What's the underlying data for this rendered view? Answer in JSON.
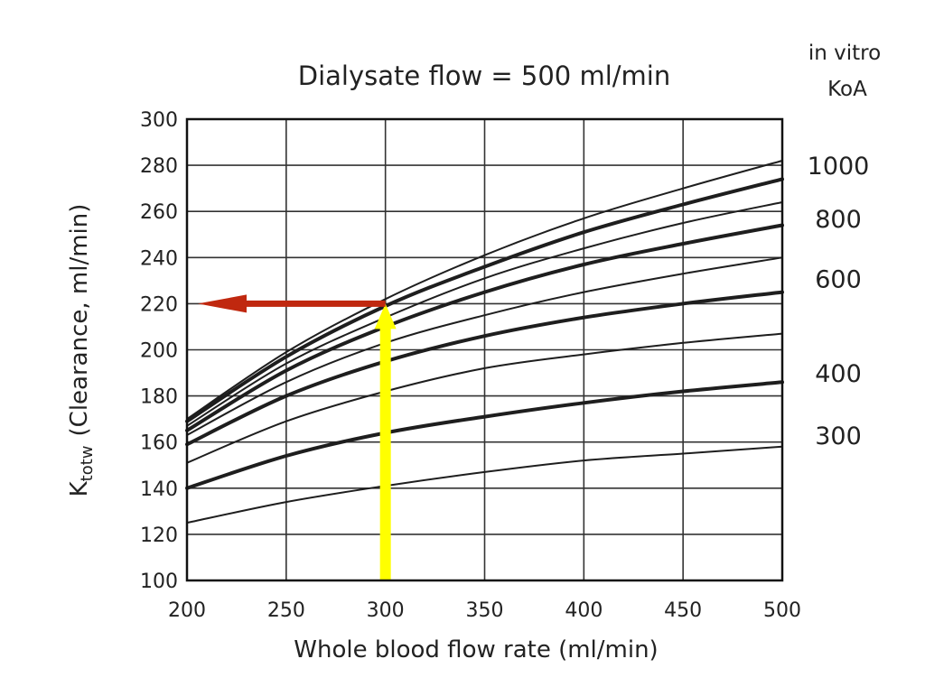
{
  "chart_data": {
    "type": "line",
    "title": "Dialysate flow = 500 ml/min",
    "xlabel": "Whole blood flow rate (ml/min)",
    "ylabel": {
      "symbol": "K",
      "subscript": "totw",
      "text": "(Clearance, ml/min)"
    },
    "right_axis_title": [
      "in vitro",
      "KoA"
    ],
    "xlim": [
      200,
      500
    ],
    "ylim": [
      100,
      300
    ],
    "x_ticks": [
      "200",
      "250",
      "300",
      "350",
      "400",
      "450",
      "500"
    ],
    "y_ticks": [
      "100",
      "120",
      "140",
      "160",
      "180",
      "200",
      "220",
      "240",
      "260",
      "280",
      "300"
    ],
    "grid": true,
    "x": [
      200,
      250,
      300,
      350,
      400,
      450,
      500
    ],
    "series": [
      {
        "values": [
          125,
          134,
          141,
          147,
          152,
          155,
          158
        ],
        "bold": false
      },
      {
        "values": [
          140,
          154,
          164,
          171,
          177,
          182,
          186
        ],
        "bold": true
      },
      {
        "values": [
          151,
          169,
          182,
          192,
          198,
          203,
          207
        ],
        "bold": false
      },
      {
        "values": [
          159,
          180,
          195,
          206,
          214,
          220,
          225
        ],
        "bold": true
      },
      {
        "values": [
          163,
          186,
          203,
          215,
          225,
          233,
          240
        ],
        "bold": false
      },
      {
        "values": [
          165,
          191,
          210,
          225,
          237,
          246,
          254
        ],
        "bold": true
      },
      {
        "values": [
          167,
          194,
          214,
          231,
          244,
          255,
          264
        ],
        "bold": false
      },
      {
        "values": [
          169,
          197,
          219,
          236,
          251,
          263,
          274
        ],
        "bold": true
      },
      {
        "values": [
          170,
          199,
          222,
          241,
          257,
          270,
          282
        ],
        "bold": false
      }
    ],
    "koa_labels": [
      {
        "text": "1000",
        "y": 280
      },
      {
        "text": "800",
        "y": 257
      },
      {
        "text": "600",
        "y": 231
      },
      {
        "text": "400",
        "y": 190
      },
      {
        "text": "300",
        "y": 163
      }
    ],
    "annotations": {
      "vertical_arrow": {
        "x": 300,
        "from_y": 100,
        "to_y": 220,
        "color": "#ffff00"
      },
      "horizontal_arrow": {
        "y": 220,
        "from_x": 300,
        "to_x": 200,
        "color": "#c0280f"
      }
    }
  }
}
